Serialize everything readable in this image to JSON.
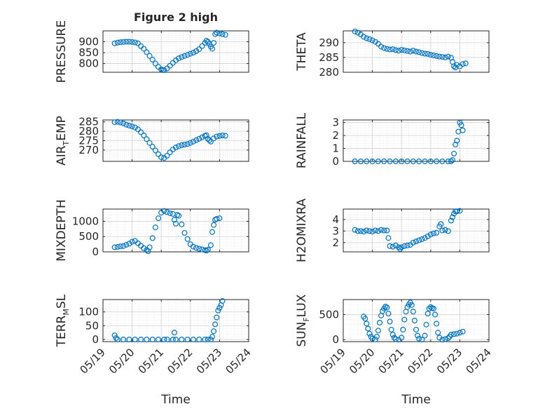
{
  "figure": {
    "title": "Figure 2 high",
    "xlabel": "Time"
  },
  "chart_data": [
    {
      "type": "scatter",
      "ylabel": "PRESSURE",
      "xlim": [
        "05/19",
        "05/24"
      ],
      "ylim": [
        760,
        950
      ],
      "yticks": [
        800,
        850,
        900
      ],
      "show_xticklabels": false,
      "grid": true,
      "marker_color": "#0072BD",
      "points": [
        [
          0.4,
          893
        ],
        [
          0.5,
          896
        ],
        [
          0.6,
          898
        ],
        [
          0.7,
          899
        ],
        [
          0.8,
          900
        ],
        [
          0.9,
          900
        ],
        [
          1.0,
          899
        ],
        [
          1.1,
          897
        ],
        [
          1.2,
          893
        ],
        [
          1.3,
          880
        ],
        [
          1.4,
          868
        ],
        [
          1.5,
          852
        ],
        [
          1.6,
          835
        ],
        [
          1.7,
          818
        ],
        [
          1.8,
          800
        ],
        [
          1.9,
          785
        ],
        [
          2.0,
          773
        ],
        [
          2.05,
          770
        ],
        [
          2.1,
          770
        ],
        [
          2.2,
          778
        ],
        [
          2.3,
          790
        ],
        [
          2.4,
          803
        ],
        [
          2.5,
          815
        ],
        [
          2.6,
          824
        ],
        [
          2.7,
          830
        ],
        [
          2.8,
          835
        ],
        [
          2.9,
          840
        ],
        [
          3.0,
          845
        ],
        [
          3.1,
          850
        ],
        [
          3.2,
          857
        ],
        [
          3.3,
          866
        ],
        [
          3.4,
          880
        ],
        [
          3.5,
          895
        ],
        [
          3.55,
          905
        ],
        [
          3.6,
          900
        ],
        [
          3.65,
          890
        ],
        [
          3.7,
          878
        ],
        [
          3.75,
          868
        ],
        [
          3.8,
          895
        ],
        [
          3.85,
          935
        ],
        [
          3.9,
          942
        ],
        [
          4.0,
          938
        ],
        [
          4.1,
          935
        ],
        [
          4.2,
          932
        ]
      ]
    },
    {
      "type": "scatter",
      "ylabel": "THETA",
      "xlim": [
        "05/19",
        "05/24"
      ],
      "ylim": [
        280,
        294
      ],
      "yticks": [
        280,
        285,
        290
      ],
      "show_xticklabels": false,
      "grid": true,
      "marker_color": "#0072BD",
      "points": [
        [
          0.4,
          293.8
        ],
        [
          0.5,
          293.4
        ],
        [
          0.6,
          292.8
        ],
        [
          0.7,
          292.0
        ],
        [
          0.8,
          291.5
        ],
        [
          0.9,
          291.2
        ],
        [
          1.0,
          290.8
        ],
        [
          1.1,
          290.3
        ],
        [
          1.2,
          289.6
        ],
        [
          1.3,
          288.7
        ],
        [
          1.4,
          288.2
        ],
        [
          1.5,
          287.9
        ],
        [
          1.6,
          287.7
        ],
        [
          1.7,
          287.8
        ],
        [
          1.8,
          287.5
        ],
        [
          1.9,
          287.3
        ],
        [
          2.0,
          287.6
        ],
        [
          2.1,
          287.4
        ],
        [
          2.2,
          287.2
        ],
        [
          2.3,
          287.0
        ],
        [
          2.4,
          287.3
        ],
        [
          2.5,
          287.0
        ],
        [
          2.6,
          286.8
        ],
        [
          2.7,
          286.5
        ],
        [
          2.8,
          286.3
        ],
        [
          2.9,
          286.2
        ],
        [
          3.0,
          285.9
        ],
        [
          3.1,
          285.7
        ],
        [
          3.2,
          285.5
        ],
        [
          3.3,
          285.3
        ],
        [
          3.4,
          285.2
        ],
        [
          3.5,
          285.0
        ],
        [
          3.6,
          285.3
        ],
        [
          3.7,
          284.9
        ],
        [
          3.75,
          283.5
        ],
        [
          3.8,
          282.0
        ],
        [
          3.85,
          281.6
        ],
        [
          3.9,
          282.5
        ],
        [
          4.0,
          282.0
        ],
        [
          4.1,
          282.8
        ],
        [
          4.2,
          283.0
        ]
      ]
    },
    {
      "type": "scatter",
      "ylabel": "AIR_TEMP",
      "xlim": [
        "05/19",
        "05/24"
      ],
      "ylim": [
        264,
        286
      ],
      "yticks": [
        270,
        275,
        280,
        285
      ],
      "show_xticklabels": false,
      "grid": true,
      "marker_color": "#0072BD",
      "points": [
        [
          0.4,
          284.8
        ],
        [
          0.5,
          285.0
        ],
        [
          0.6,
          284.7
        ],
        [
          0.7,
          284.2
        ],
        [
          0.8,
          283.5
        ],
        [
          0.9,
          283.0
        ],
        [
          1.0,
          282.6
        ],
        [
          1.1,
          282.0
        ],
        [
          1.2,
          281.0
        ],
        [
          1.3,
          279.5
        ],
        [
          1.4,
          277.8
        ],
        [
          1.5,
          275.8
        ],
        [
          1.6,
          273.8
        ],
        [
          1.7,
          271.8
        ],
        [
          1.8,
          269.8
        ],
        [
          1.9,
          267.8
        ],
        [
          2.0,
          266.2
        ],
        [
          2.1,
          265.8
        ],
        [
          2.2,
          267.0
        ],
        [
          2.3,
          268.8
        ],
        [
          2.4,
          270.3
        ],
        [
          2.5,
          271.4
        ],
        [
          2.6,
          272.1
        ],
        [
          2.7,
          272.6
        ],
        [
          2.8,
          272.9
        ],
        [
          2.9,
          273.2
        ],
        [
          3.0,
          273.8
        ],
        [
          3.1,
          274.5
        ],
        [
          3.2,
          275.3
        ],
        [
          3.3,
          276.0
        ],
        [
          3.4,
          276.8
        ],
        [
          3.5,
          277.6
        ],
        [
          3.55,
          277.9
        ],
        [
          3.6,
          276.0
        ],
        [
          3.65,
          275.2
        ],
        [
          3.7,
          274.5
        ],
        [
          3.8,
          276.2
        ],
        [
          3.9,
          277.2
        ],
        [
          4.0,
          277.5
        ],
        [
          4.1,
          277.8
        ],
        [
          4.2,
          277.6
        ]
      ]
    },
    {
      "type": "scatter",
      "ylabel": "RAINFALL",
      "xlim": [
        "05/19",
        "05/24"
      ],
      "ylim": [
        0,
        3.2
      ],
      "yticks": [
        0,
        1,
        2,
        3
      ],
      "show_xticklabels": false,
      "grid": true,
      "marker_color": "#0072BD",
      "points": [
        [
          0.4,
          0
        ],
        [
          0.6,
          0
        ],
        [
          0.8,
          0
        ],
        [
          1.0,
          0
        ],
        [
          1.2,
          0
        ],
        [
          1.4,
          0
        ],
        [
          1.6,
          0
        ],
        [
          1.8,
          0
        ],
        [
          2.0,
          0
        ],
        [
          2.2,
          0
        ],
        [
          2.4,
          0
        ],
        [
          2.6,
          0
        ],
        [
          2.8,
          0
        ],
        [
          3.0,
          0
        ],
        [
          3.2,
          0
        ],
        [
          3.4,
          0
        ],
        [
          3.6,
          0
        ],
        [
          3.7,
          0
        ],
        [
          3.75,
          0.1
        ],
        [
          3.8,
          0.6
        ],
        [
          3.85,
          1.3
        ],
        [
          3.9,
          1.6
        ],
        [
          3.95,
          2.3
        ],
        [
          4.0,
          3.0
        ],
        [
          4.05,
          2.8
        ],
        [
          4.1,
          2.4
        ]
      ]
    },
    {
      "type": "scatter",
      "ylabel": "MIXDEPTH",
      "xlim": [
        "05/19",
        "05/24"
      ],
      "ylim": [
        0,
        1400
      ],
      "yticks": [
        0,
        500,
        1000
      ],
      "show_xticklabels": false,
      "grid": true,
      "marker_color": "#0072BD",
      "points": [
        [
          0.4,
          150
        ],
        [
          0.5,
          160
        ],
        [
          0.6,
          180
        ],
        [
          0.7,
          190
        ],
        [
          0.8,
          230
        ],
        [
          0.9,
          270
        ],
        [
          1.0,
          330
        ],
        [
          1.1,
          360
        ],
        [
          1.2,
          280
        ],
        [
          1.3,
          200
        ],
        [
          1.4,
          120
        ],
        [
          1.5,
          60
        ],
        [
          1.55,
          20
        ],
        [
          1.6,
          150
        ],
        [
          1.7,
          450
        ],
        [
          1.8,
          800
        ],
        [
          1.9,
          1100
        ],
        [
          2.0,
          1280
        ],
        [
          2.1,
          1340
        ],
        [
          2.2,
          1300
        ],
        [
          2.3,
          1260
        ],
        [
          2.4,
          1240
        ],
        [
          2.45,
          1050
        ],
        [
          2.5,
          920
        ],
        [
          2.55,
          1210
        ],
        [
          2.6,
          1180
        ],
        [
          2.7,
          900
        ],
        [
          2.8,
          620
        ],
        [
          2.9,
          420
        ],
        [
          3.0,
          250
        ],
        [
          3.1,
          170
        ],
        [
          3.2,
          130
        ],
        [
          3.3,
          100
        ],
        [
          3.4,
          80
        ],
        [
          3.5,
          55
        ],
        [
          3.55,
          40
        ],
        [
          3.6,
          70
        ],
        [
          3.7,
          220
        ],
        [
          3.75,
          650
        ],
        [
          3.8,
          880
        ],
        [
          3.85,
          1050
        ],
        [
          3.9,
          1080
        ],
        [
          4.0,
          1100
        ]
      ]
    },
    {
      "type": "scatter",
      "ylabel": "H2OMIXRA",
      "xlim": [
        "05/19",
        "05/24"
      ],
      "ylim": [
        1.2,
        4.9
      ],
      "yticks": [
        2,
        3,
        4
      ],
      "show_xticklabels": false,
      "grid": true,
      "marker_color": "#0072BD",
      "points": [
        [
          0.4,
          3.1
        ],
        [
          0.5,
          3.0
        ],
        [
          0.6,
          3.0
        ],
        [
          0.7,
          2.95
        ],
        [
          0.8,
          3.05
        ],
        [
          0.9,
          3.0
        ],
        [
          1.0,
          2.95
        ],
        [
          1.1,
          3.05
        ],
        [
          1.2,
          3.0
        ],
        [
          1.3,
          3.1
        ],
        [
          1.4,
          3.05
        ],
        [
          1.5,
          3.05
        ],
        [
          1.55,
          2.4
        ],
        [
          1.6,
          1.7
        ],
        [
          1.7,
          1.65
        ],
        [
          1.8,
          1.75
        ],
        [
          1.9,
          1.6
        ],
        [
          1.95,
          1.45
        ],
        [
          2.0,
          1.6
        ],
        [
          2.1,
          1.7
        ],
        [
          2.2,
          1.75
        ],
        [
          2.3,
          1.8
        ],
        [
          2.4,
          2.0
        ],
        [
          2.5,
          2.1
        ],
        [
          2.6,
          2.2
        ],
        [
          2.7,
          2.3
        ],
        [
          2.8,
          2.4
        ],
        [
          2.9,
          2.55
        ],
        [
          3.0,
          2.7
        ],
        [
          3.1,
          2.8
        ],
        [
          3.2,
          2.85
        ],
        [
          3.3,
          3.4
        ],
        [
          3.35,
          3.6
        ],
        [
          3.4,
          3.05
        ],
        [
          3.5,
          3.1
        ],
        [
          3.6,
          3.0
        ],
        [
          3.7,
          3.9
        ],
        [
          3.75,
          4.2
        ],
        [
          3.8,
          4.5
        ],
        [
          3.85,
          4.7
        ],
        [
          3.9,
          4.7
        ],
        [
          4.0,
          4.75
        ]
      ]
    },
    {
      "type": "scatter",
      "ylabel": "TERR_MSL",
      "xlim": [
        "05/19",
        "05/24"
      ],
      "ylim": [
        -8,
        145
      ],
      "yticks": [
        0,
        50,
        100
      ],
      "show_xticklabels": true,
      "xticks": [
        "05/19",
        "05/20",
        "05/21",
        "05/22",
        "05/23",
        "05/24"
      ],
      "grid": true,
      "marker_color": "#0072BD",
      "points": [
        [
          0.4,
          15
        ],
        [
          0.45,
          5
        ],
        [
          0.5,
          0
        ],
        [
          0.7,
          0
        ],
        [
          0.9,
          0
        ],
        [
          1.1,
          0
        ],
        [
          1.3,
          0
        ],
        [
          1.5,
          0
        ],
        [
          1.7,
          0
        ],
        [
          1.9,
          0
        ],
        [
          2.1,
          0
        ],
        [
          2.2,
          0
        ],
        [
          2.4,
          0
        ],
        [
          2.45,
          25
        ],
        [
          2.5,
          0
        ],
        [
          2.7,
          0
        ],
        [
          2.9,
          0
        ],
        [
          3.1,
          0
        ],
        [
          3.3,
          0
        ],
        [
          3.5,
          0
        ],
        [
          3.6,
          0
        ],
        [
          3.7,
          0
        ],
        [
          3.75,
          10
        ],
        [
          3.8,
          30
        ],
        [
          3.85,
          55
        ],
        [
          3.9,
          80
        ],
        [
          3.95,
          105
        ],
        [
          4.0,
          115
        ],
        [
          4.05,
          125
        ],
        [
          4.1,
          140
        ]
      ]
    },
    {
      "type": "scatter",
      "ylabel": "SUN_FLUX",
      "xlim": [
        "05/19",
        "05/24"
      ],
      "ylim": [
        -40,
        800
      ],
      "yticks": [
        0,
        500
      ],
      "show_xticklabels": true,
      "xticks": [
        "05/19",
        "05/20",
        "05/21",
        "05/22",
        "05/23",
        "05/24"
      ],
      "grid": true,
      "marker_color": "#0072BD",
      "points": [
        [
          0.7,
          460
        ],
        [
          0.75,
          420
        ],
        [
          0.8,
          320
        ],
        [
          0.85,
          220
        ],
        [
          0.9,
          120
        ],
        [
          0.95,
          60
        ],
        [
          1.0,
          20
        ],
        [
          1.1,
          5
        ],
        [
          1.15,
          60
        ],
        [
          1.2,
          180
        ],
        [
          1.25,
          340
        ],
        [
          1.3,
          480
        ],
        [
          1.35,
          570
        ],
        [
          1.4,
          620
        ],
        [
          1.45,
          660
        ],
        [
          1.5,
          640
        ],
        [
          1.55,
          520
        ],
        [
          1.6,
          360
        ],
        [
          1.65,
          200
        ],
        [
          1.7,
          100
        ],
        [
          1.75,
          40
        ],
        [
          1.8,
          10
        ],
        [
          1.9,
          0
        ],
        [
          2.0,
          40
        ],
        [
          2.05,
          200
        ],
        [
          2.1,
          400
        ],
        [
          2.15,
          560
        ],
        [
          2.2,
          650
        ],
        [
          2.25,
          700
        ],
        [
          2.3,
          740
        ],
        [
          2.35,
          690
        ],
        [
          2.4,
          560
        ],
        [
          2.45,
          380
        ],
        [
          2.5,
          200
        ],
        [
          2.55,
          80
        ],
        [
          2.6,
          20
        ],
        [
          2.7,
          0
        ],
        [
          2.8,
          80
        ],
        [
          2.85,
          300
        ],
        [
          2.9,
          520
        ],
        [
          2.95,
          620
        ],
        [
          3.0,
          650
        ],
        [
          3.05,
          630
        ],
        [
          3.1,
          620
        ],
        [
          3.15,
          500
        ],
        [
          3.2,
          320
        ],
        [
          3.25,
          140
        ],
        [
          3.3,
          40
        ],
        [
          3.4,
          0
        ],
        [
          3.5,
          10
        ],
        [
          3.6,
          30
        ],
        [
          3.65,
          60
        ],
        [
          3.7,
          100
        ],
        [
          3.8,
          110
        ],
        [
          3.9,
          120
        ],
        [
          4.0,
          140
        ],
        [
          4.1,
          160
        ]
      ]
    }
  ]
}
